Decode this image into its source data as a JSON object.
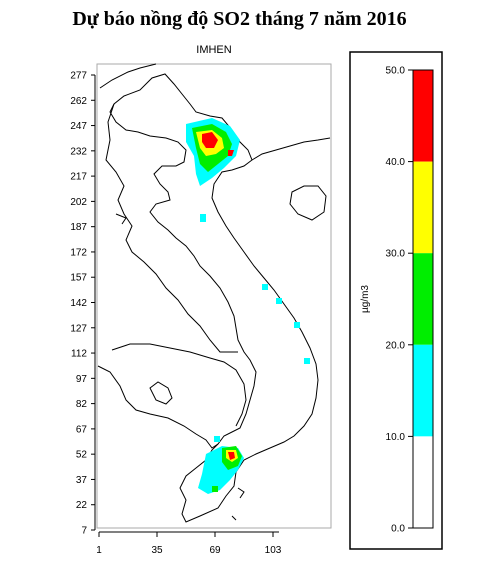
{
  "title": "Dự báo nồng độ SO2 tháng 7 năm 2016",
  "subtitle": "IMHEN",
  "map": {
    "y_ticks": [
      "277",
      "262",
      "247",
      "232",
      "217",
      "202",
      "187",
      "172",
      "157",
      "142",
      "127",
      "112",
      "97",
      "82",
      "67",
      "52",
      "37",
      "22",
      "7"
    ],
    "x_ticks": [
      "1",
      "35",
      "69",
      "103"
    ]
  },
  "legend": {
    "unit": "µg/m3",
    "ticks": [
      "50.0",
      "40.0",
      "30.0",
      "20.0",
      "10.0",
      "0.0"
    ],
    "bands": [
      {
        "from": 40,
        "to": 50,
        "color": "#ff0000"
      },
      {
        "from": 30,
        "to": 40,
        "color": "#ffff00"
      },
      {
        "from": 20,
        "to": 30,
        "color": "#00ee00"
      },
      {
        "from": 10,
        "to": 20,
        "color": "#00ffff"
      },
      {
        "from": 0,
        "to": 10,
        "color": "#ffffff"
      }
    ]
  }
}
